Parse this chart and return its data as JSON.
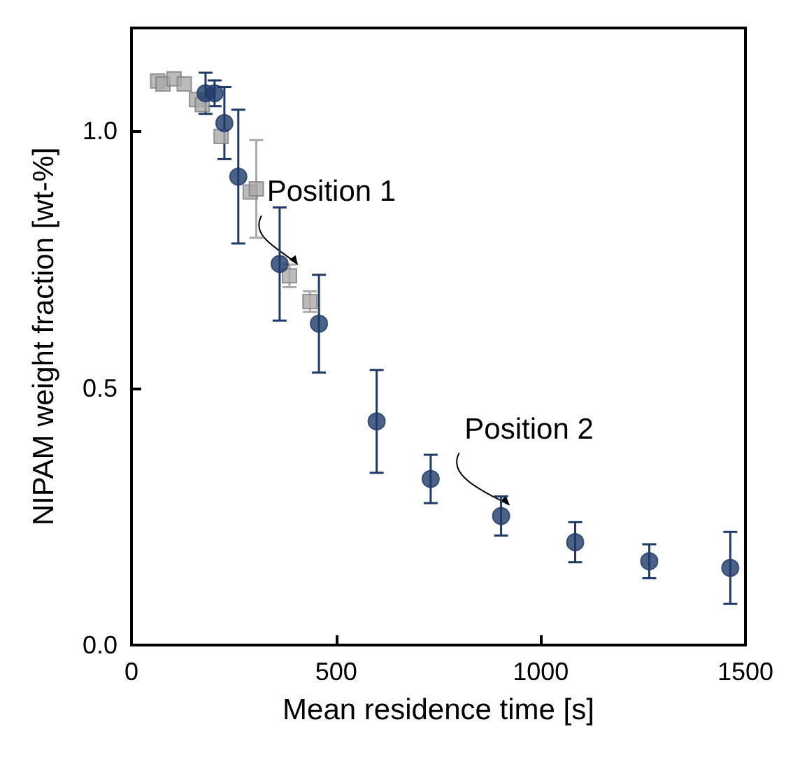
{
  "chart_data": {
    "type": "scatter",
    "xlabel": "Mean residence time [s]",
    "ylabel": "NIPAM weight fraction [wt-%]",
    "xlim": [
      0,
      1500
    ],
    "xticks": [
      0,
      500,
      1000,
      1500
    ],
    "ylim": [
      0,
      1.2
    ],
    "yticks": [
      {
        "value": 0,
        "label": "0.0"
      },
      {
        "value": 0.5,
        "label": "0.5"
      },
      {
        "value": 1,
        "label": "1.0"
      }
    ],
    "series": [
      {
        "color": "#aaaaaa",
        "marker": "square",
        "x": [
          64,
          77,
          104,
          129,
          159,
          173,
          219,
          290,
          305,
          386,
          436
        ],
        "values": [
          1.097,
          1.091,
          1.101,
          1.091,
          1.061,
          1.051,
          0.989,
          0.881,
          0.887,
          0.718,
          0.668
        ],
        "errors": [
          null,
          null,
          null,
          null,
          null,
          null,
          null,
          null,
          0.095,
          0.022,
          0.02
        ]
      },
      {
        "color": "#1f3a68",
        "marker": "circle",
        "x": [
          181,
          203,
          227,
          261,
          362,
          458,
          599,
          731,
          903,
          1084,
          1265,
          1463
        ],
        "values": [
          1.073,
          1.073,
          1.015,
          0.911,
          0.741,
          0.625,
          0.435,
          0.323,
          0.251,
          0.2,
          0.163,
          0.15
        ],
        "errors": [
          0.04,
          0.025,
          0.07,
          0.13,
          0.11,
          0.095,
          0.1,
          0.047,
          0.038,
          0.039,
          0.033,
          0.07
        ]
      }
    ],
    "annotations": [
      {
        "text": "Position 1",
        "x": 386,
        "y": 0.718
      },
      {
        "text": "Position 2",
        "x": 903,
        "y": 0.251
      }
    ]
  }
}
